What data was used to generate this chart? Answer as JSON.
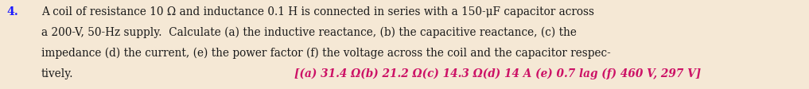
{
  "number": "4.",
  "main_text_line1": "A coil of resistance 10 Ω and inductance 0.1 H is connected in series with a 150-μF capacitor across",
  "main_text_line2": "a 200-V, 50-Hz supply.  Calculate (a) the inductive reactance, (b) the capacitive reactance, (c) the",
  "main_text_line3": "impedance (d) the current, (e) the power factor (f) the voltage across the coil and the capacitor respec-",
  "main_text_line4": "tively.",
  "answer_text": "[(a) 31.4 Ω(b) 21.2 Ω(c) 14.3 Ω(d) 14 A (e) 0.7 lag (f) 460 V, 297 V]",
  "number_color": "#1a1aff",
  "main_text_color": "#1a1a1a",
  "answer_color": "#cc1166",
  "background_color": "#f5e8d5",
  "font_size": 9.8,
  "fig_width": 10.17,
  "fig_height": 1.13,
  "dpi": 100
}
